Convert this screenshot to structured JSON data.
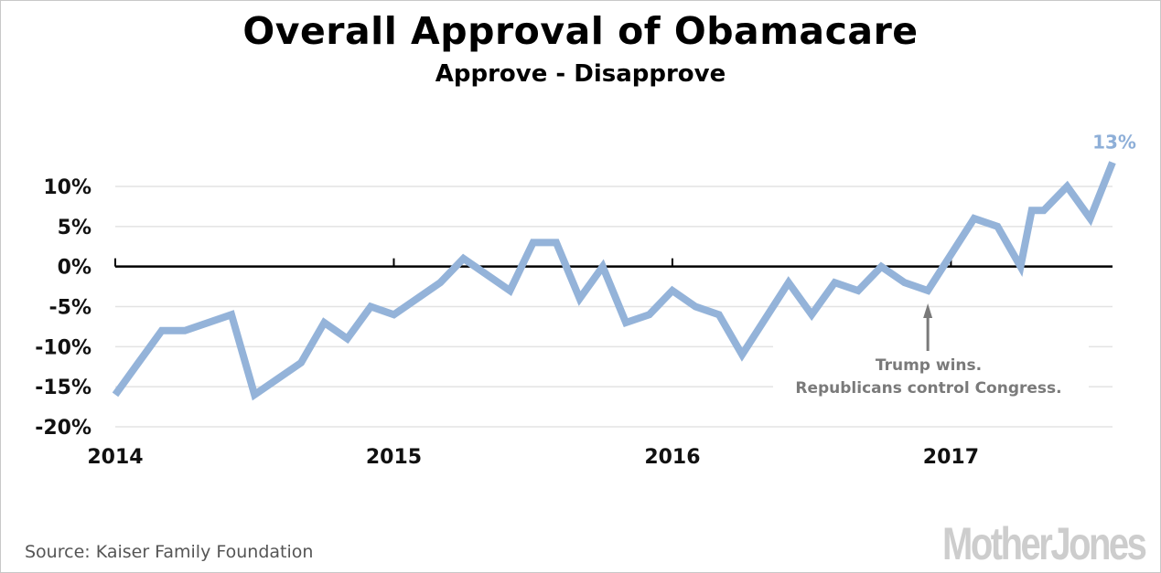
{
  "chart_data": {
    "type": "line",
    "title": "Overall Approval of Obamacare",
    "subtitle": "Approve - Disapprove",
    "xlabel": "",
    "ylabel": "",
    "xlim": [
      2014.0,
      2017.58
    ],
    "ylim": [
      -20,
      10
    ],
    "grid": true,
    "y_ticks": [
      10,
      5,
      0,
      -5,
      -10,
      -15,
      -20
    ],
    "y_tick_labels": [
      "10%",
      "5%",
      "0%",
      "-5%",
      "-10%",
      "-15%",
      "-20%"
    ],
    "x_ticks": [
      2014,
      2015,
      2016,
      2017
    ],
    "x_tick_labels": [
      "2014",
      "2015",
      "2016",
      "2017"
    ],
    "series": [
      {
        "name": "Approve - Disapprove",
        "color": "#94b3d9",
        "x": [
          2014.0,
          2014.083,
          2014.167,
          2014.25,
          2014.417,
          2014.5,
          2014.667,
          2014.75,
          2014.833,
          2014.917,
          2015.0,
          2015.167,
          2015.25,
          2015.417,
          2015.5,
          2015.583,
          2015.667,
          2015.75,
          2015.833,
          2015.917,
          2016.0,
          2016.083,
          2016.167,
          2016.25,
          2016.417,
          2016.5,
          2016.583,
          2016.667,
          2016.75,
          2016.833,
          2016.917,
          2017.083,
          2017.167,
          2017.25,
          2017.29,
          2017.333,
          2017.417,
          2017.5,
          2017.58
        ],
        "values": [
          -16,
          -12,
          -8,
          -8,
          -6,
          -16,
          -12,
          -7,
          -9,
          -5,
          -6,
          -2,
          1,
          -3,
          3,
          3,
          -4,
          0,
          -7,
          -6,
          -3,
          -5,
          -6,
          -11,
          -2,
          -6,
          -2,
          -3,
          0,
          -2,
          -3,
          6,
          5,
          0,
          7,
          7,
          10,
          6,
          13
        ]
      }
    ],
    "end_label": "13%",
    "annotation": {
      "at_x": 2016.917,
      "lines": [
        "Trump wins.",
        "Republicans control Congress."
      ],
      "color": "#7a7a7a"
    },
    "zero_line_color": "#000000",
    "grid_color": "#e3e3e3"
  },
  "footer": {
    "source": "Source: Kaiser Family Foundation",
    "logo": "MotherJones"
  }
}
